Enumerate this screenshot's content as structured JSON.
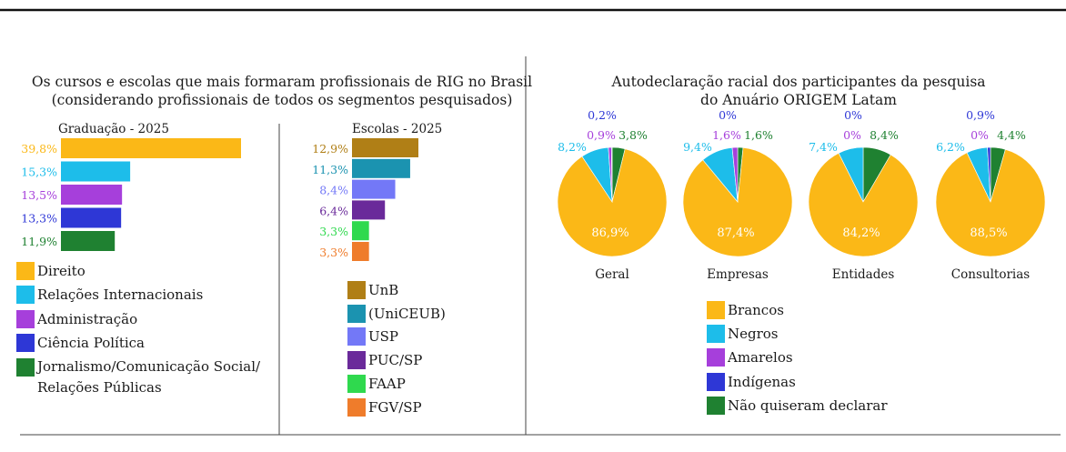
{
  "left": {
    "title_line1": "Os cursos e escolas que mais formaram profissionais de RIG no Brasil",
    "title_line2": "(considerando profissionais de todos os segmentos pesquisados)"
  },
  "right": {
    "title_line1": "Autodeclaração racial dos participantes da pesquisa",
    "title_line2": "do Anuário ORIGEM Latam"
  },
  "chart_data": [
    {
      "type": "bar",
      "orientation": "horizontal",
      "title": "Graduação - 2025",
      "categories": [
        "Direito",
        "Relações Internacionais",
        "Administração",
        "Ciência Política",
        "Jornalismo/Comunicação Social/ Relações Públicas"
      ],
      "values": [
        39.8,
        15.3,
        13.5,
        13.3,
        11.9
      ],
      "value_labels": [
        "39,8%",
        "15,3%",
        "13,5%",
        "13,3%",
        "11,9%"
      ],
      "colors": [
        "#FBB817",
        "#1DBDEA",
        "#A63FDB",
        "#2E37D6",
        "#1F8131"
      ],
      "legend": [
        "Direito",
        "Relações Internacionais",
        "Administração",
        "Ciência Política",
        "Jornalismo/Comunicação Social/",
        "Relações Públicas"
      ]
    },
    {
      "type": "bar",
      "orientation": "horizontal",
      "title": "Escolas - 2025",
      "categories": [
        "UnB",
        "(UniCEUB)",
        "USP",
        "PUC/SP",
        "FAAP",
        "FGV/SP"
      ],
      "values": [
        12.9,
        11.3,
        8.4,
        6.4,
        3.3,
        3.3
      ],
      "value_labels": [
        "12,9%",
        "11,3%",
        "8,4%",
        "6,4%",
        "3,3%",
        "3,3%"
      ],
      "colors": [
        "#B07F16",
        "#1B93B0",
        "#7378F7",
        "#6A2A9A",
        "#2FD94E",
        "#EF7C2B"
      ]
    },
    {
      "type": "pie",
      "title": "Autodeclaração racial dos participantes da pesquisa do Anuário ORIGEM Latam",
      "categories": [
        "Brancos",
        "Negros",
        "Amarelos",
        "Indígenas",
        "Não quiseram declarar"
      ],
      "colors": [
        "#FBB817",
        "#1DBDEA",
        "#A63FDB",
        "#2E37D6",
        "#1F8131"
      ],
      "label_colors": [
        "#ffffff",
        "#1DBDEA",
        "#A63FDB",
        "#2E37D6",
        "#1F8131"
      ],
      "series": [
        {
          "name": "Geral",
          "values": [
            86.9,
            8.2,
            0.9,
            0.2,
            3.8
          ],
          "labels": [
            "86,9%",
            "8,2%",
            "0,9%",
            "0,2%",
            "3,8%"
          ]
        },
        {
          "name": "Empresas",
          "values": [
            87.4,
            9.4,
            1.6,
            0,
            1.6
          ],
          "labels": [
            "87,4%",
            "9,4%",
            "1,6%",
            "0%",
            "1,6%"
          ]
        },
        {
          "name": "Entidades",
          "values": [
            84.2,
            7.4,
            0,
            0,
            8.4
          ],
          "labels": [
            "84,2%",
            "7,4%",
            "0%",
            "0%",
            "8,4%"
          ]
        },
        {
          "name": "Consultorias",
          "values": [
            88.5,
            6.2,
            0,
            0.9,
            4.4
          ],
          "labels": [
            "88,5%",
            "6,2%",
            "0%",
            "0,9%",
            "4,4%"
          ]
        }
      ]
    }
  ]
}
